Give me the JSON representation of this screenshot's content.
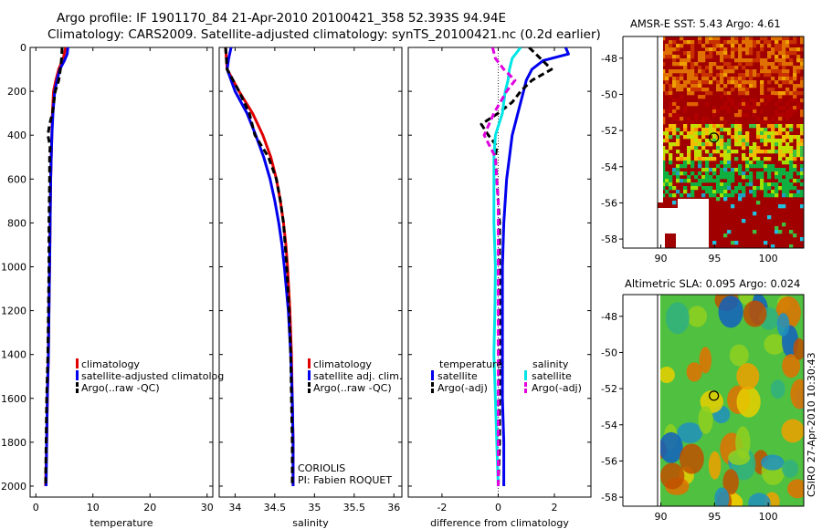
{
  "title_line1": "Argo profile: IF 1901170_84 21-Apr-2010 20100421_358 52.393S 94.94E",
  "title_line2": "Climatology: CARS2009. Satellite-adjusted climatology: synTS_20100421.nc (0.2d earlier)",
  "side_label": "CSIRO 27-Apr-2010 10:30:43",
  "info_line1": "CORIOLIS",
  "info_line2": "PI: Fabien ROQUET",
  "colors": {
    "red": "#e00000",
    "blue": "#0000ee",
    "black": "#000000",
    "cyan": "#00e5e5",
    "magenta": "#e000e0"
  },
  "chart_data": [
    {
      "type": "line",
      "xlabel": "temperature",
      "xlim": [
        -1,
        31
      ],
      "xticks": [
        "0",
        "10",
        "20",
        "30"
      ],
      "ylim": [
        2050,
        0
      ],
      "yticks": [
        "0",
        "200",
        "400",
        "600",
        "800",
        "1000",
        "1200",
        "1400",
        "1600",
        "1800",
        "2000"
      ],
      "series": [
        {
          "name": "climatology",
          "color": "#e00000",
          "dash": "solid",
          "depth": [
            0,
            50,
            100,
            150,
            200,
            300,
            400,
            500,
            600,
            800,
            1000,
            1200,
            1400,
            1600,
            1800,
            2000
          ],
          "values": [
            5.2,
            4.8,
            4.0,
            3.5,
            3.1,
            2.9,
            2.8,
            2.7,
            2.6,
            2.5,
            2.4,
            2.3,
            2.2,
            2.0,
            1.9,
            1.7
          ]
        },
        {
          "name": "satellite-adjusted climatology",
          "color": "#0000ee",
          "dash": "solid",
          "depth": [
            0,
            30,
            60,
            100,
            150,
            200,
            300,
            400,
            500,
            600,
            800,
            1000,
            1200,
            1400,
            1600,
            1800,
            2000
          ],
          "values": [
            5.6,
            5.5,
            5.0,
            4.2,
            3.7,
            3.3,
            3.0,
            2.8,
            2.7,
            2.6,
            2.5,
            2.4,
            2.3,
            2.2,
            2.0,
            1.9,
            1.8
          ]
        },
        {
          "name": "Argo(..raw -QC)",
          "color": "#000000",
          "dash": "dashed",
          "depth": [
            0,
            50,
            100,
            150,
            200,
            300,
            350,
            400,
            450,
            500,
            600,
            800,
            1000,
            1200,
            1400,
            1600,
            1800,
            2000
          ],
          "values": [
            4.6,
            4.5,
            4.3,
            4.0,
            3.4,
            2.9,
            2.4,
            2.1,
            2.5,
            2.4,
            2.4,
            2.3,
            2.3,
            2.2,
            2.1,
            1.9,
            1.8,
            1.7
          ]
        }
      ],
      "legend": [
        "climatology",
        "satellite-adjusted climatolog",
        "Argo(..raw -QC)"
      ]
    },
    {
      "type": "line",
      "xlabel": "salinity",
      "xlim": [
        33.8,
        36.1
      ],
      "xticks": [
        "34",
        "34.5",
        "35",
        "35.5",
        "36"
      ],
      "ylim": [
        2050,
        0
      ],
      "series": [
        {
          "name": "climatology",
          "color": "#e00000",
          "dash": "solid",
          "depth": [
            0,
            100,
            200,
            300,
            400,
            500,
            600,
            700,
            800,
            900,
            1000,
            1200,
            1400,
            1600,
            1800,
            2000
          ],
          "values": [
            33.88,
            33.9,
            34.05,
            34.22,
            34.35,
            34.45,
            34.52,
            34.57,
            34.61,
            34.64,
            34.66,
            34.69,
            34.71,
            34.72,
            34.73,
            34.73
          ]
        },
        {
          "name": "satellite adj. clim.",
          "color": "#0000ee",
          "dash": "solid",
          "depth": [
            0,
            50,
            100,
            200,
            300,
            400,
            500,
            600,
            700,
            800,
            900,
            1000,
            1200,
            1400,
            1600,
            1800,
            2000
          ],
          "values": [
            33.95,
            33.92,
            33.9,
            34.0,
            34.15,
            34.26,
            34.36,
            34.44,
            34.5,
            34.55,
            34.59,
            34.62,
            34.67,
            34.7,
            34.72,
            34.73,
            34.73
          ]
        },
        {
          "name": "Argo(..raw -QC)",
          "color": "#000000",
          "dash": "dashed",
          "depth": [
            0,
            100,
            200,
            300,
            400,
            500,
            600,
            700,
            800,
            900,
            1000,
            1200,
            1400,
            1600,
            1800,
            2000
          ],
          "values": [
            33.88,
            33.9,
            34.05,
            34.18,
            34.25,
            34.42,
            34.52,
            34.57,
            34.61,
            34.63,
            34.65,
            34.68,
            34.7,
            34.71,
            34.72,
            34.72
          ]
        }
      ],
      "legend": [
        "climatology",
        "satellite adj. clim.",
        "Argo(..raw -QC)"
      ]
    },
    {
      "type": "line",
      "xlabel": "difference from climatology",
      "xlim": [
        -3.2,
        3.3
      ],
      "xticks": [
        "-2",
        "0",
        "2"
      ],
      "ylim": [
        2050,
        0
      ],
      "series": [
        {
          "name": "temperature satellite",
          "color": "#0000ee",
          "dash": "solid",
          "depth": [
            0,
            30,
            60,
            100,
            150,
            200,
            250,
            300,
            400,
            500,
            600,
            800,
            1000,
            1200,
            1400,
            1600,
            1800,
            2000
          ],
          "values": [
            2.4,
            2.5,
            1.6,
            1.2,
            1.0,
            0.9,
            0.8,
            0.7,
            0.5,
            0.4,
            0.3,
            0.2,
            0.15,
            0.15,
            0.15,
            0.15,
            0.2,
            0.2
          ]
        },
        {
          "name": "temperature Argo(-adj)",
          "color": "#000000",
          "dash": "dashed",
          "depth": [
            0,
            50,
            100,
            150,
            200,
            250,
            300,
            350,
            400,
            450,
            500,
            600,
            800,
            1000,
            1200,
            1400,
            1600,
            1800,
            2000
          ],
          "values": [
            1.1,
            1.5,
            1.9,
            1.2,
            0.8,
            0.5,
            0.0,
            -0.6,
            -0.35,
            -0.05,
            -0.1,
            -0.05,
            0.05,
            0.05,
            0.05,
            0.05,
            0.05,
            0.05,
            0.0
          ]
        },
        {
          "name": "salinity satellite",
          "color": "#00e5e5",
          "dash": "solid",
          "depth": [
            0,
            50,
            100,
            150,
            200,
            250,
            300,
            400,
            500,
            600,
            800,
            1000,
            1200,
            1400,
            1600,
            1800,
            2000
          ],
          "values": [
            0.8,
            0.5,
            0.4,
            0.35,
            0.25,
            0.2,
            0.15,
            -0.1,
            -0.15,
            -0.15,
            -0.15,
            -0.1,
            -0.12,
            -0.15,
            -0.1,
            -0.05,
            0.0
          ]
        },
        {
          "name": "salinity Argo(-adj)",
          "color": "#e000e0",
          "dash": "dashed",
          "depth": [
            0,
            50,
            100,
            150,
            200,
            300,
            400,
            500,
            600,
            700,
            800,
            1000,
            1200,
            1400,
            1600,
            1800,
            2000
          ],
          "values": [
            -0.2,
            -0.1,
            0.2,
            0.6,
            0.3,
            -0.15,
            -0.5,
            -0.1,
            -0.05,
            0.0,
            0.0,
            0.0,
            0.0,
            0.0,
            0.0,
            0.0,
            0.0
          ]
        }
      ],
      "legend_headers": [
        "temperature",
        "salinity"
      ],
      "legend": [
        "satellite",
        "Argo(-adj)",
        "satellite",
        "Argo(-adj)"
      ]
    },
    {
      "type": "heatmap",
      "title": "AMSR-E SST: 5.43  Argo: 4.61",
      "xticks": [
        "90",
        "95",
        "100"
      ],
      "yticks": [
        "-48",
        "-50",
        "-52",
        "-54",
        "-56",
        "-58"
      ],
      "marker": {
        "lon": 94.94,
        "lat": -52.39
      }
    },
    {
      "type": "heatmap",
      "title": "Altimetric SLA: 0.095  Argo: 0.024",
      "xticks": [
        "90",
        "95",
        "100"
      ],
      "yticks": [
        "-48",
        "-50",
        "-52",
        "-54",
        "-56",
        "-58"
      ],
      "marker": {
        "lon": 94.94,
        "lat": -52.39
      }
    }
  ]
}
